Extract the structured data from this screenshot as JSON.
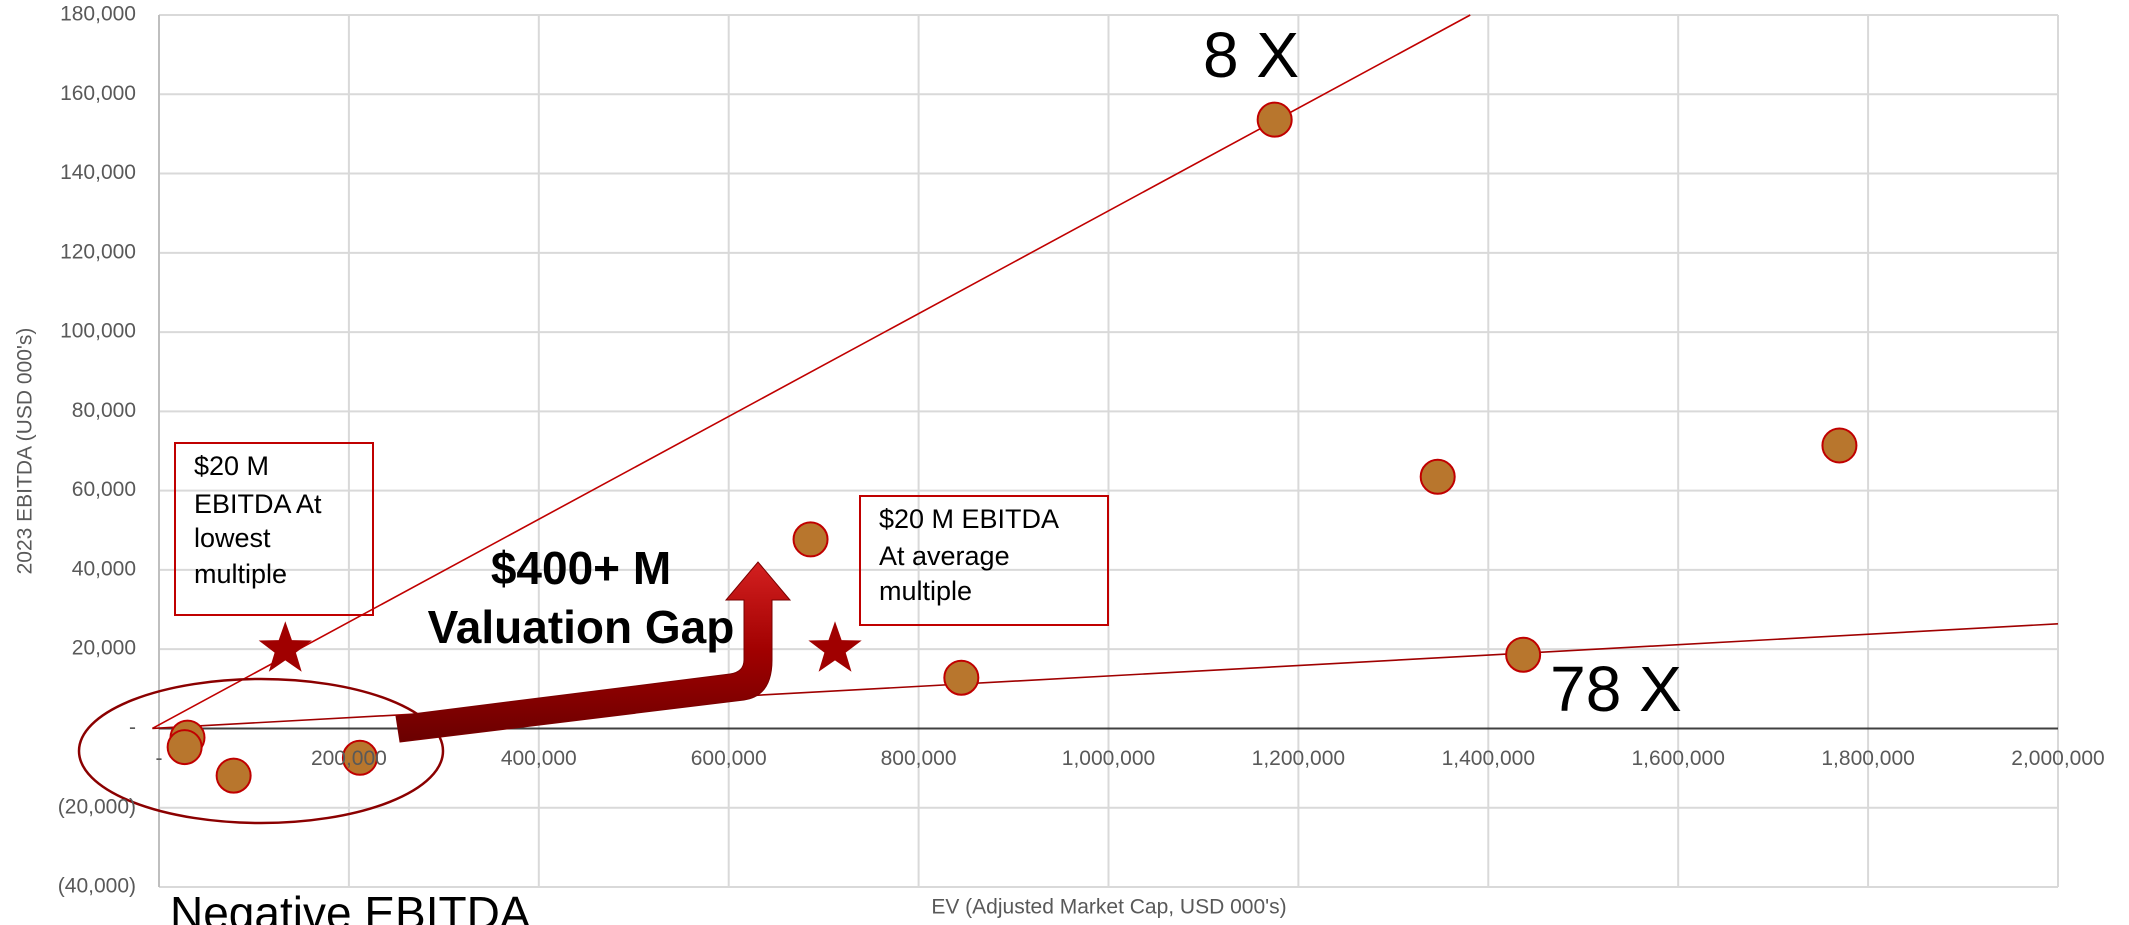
{
  "chart_data": {
    "type": "scatter",
    "x_label": "EV (Adjusted Market Cap, USD 000's)",
    "y_label": "2023 EBITDA (USD 000's)",
    "xlim": [
      0,
      2000000
    ],
    "ylim": [
      -40000,
      180000
    ],
    "xticks": [
      {
        "value": 0,
        "label": "-"
      },
      {
        "value": 200000,
        "label": "200,000"
      },
      {
        "value": 400000,
        "label": "400,000"
      },
      {
        "value": 600000,
        "label": "600,000"
      },
      {
        "value": 800000,
        "label": "800,000"
      },
      {
        "value": 1000000,
        "label": "1,000,000"
      },
      {
        "value": 1200000,
        "label": "1,200,000"
      },
      {
        "value": 1400000,
        "label": "1,400,000"
      },
      {
        "value": 1600000,
        "label": "1,600,000"
      },
      {
        "value": 1800000,
        "label": "1,800,000"
      },
      {
        "value": 2000000,
        "label": "2,000,000"
      }
    ],
    "yticks": [
      {
        "value": -40000,
        "label": "(40,000)"
      },
      {
        "value": -20000,
        "label": "(20,000)"
      },
      {
        "value": 0,
        "label": "-"
      },
      {
        "value": 20000,
        "label": "20,000"
      },
      {
        "value": 40000,
        "label": "40,000"
      },
      {
        "value": 60000,
        "label": "60,000"
      },
      {
        "value": 80000,
        "label": "80,000"
      },
      {
        "value": 100000,
        "label": "100,000"
      },
      {
        "value": 120000,
        "label": "120,000"
      },
      {
        "value": 140000,
        "label": "140,000"
      },
      {
        "value": 160000,
        "label": "160,000"
      },
      {
        "value": 180000,
        "label": "180,000"
      }
    ],
    "grid": true,
    "series": [
      {
        "marker": "circle",
        "color": "#b8762d",
        "edge_color": "#c00000",
        "x": [
          1175000,
          1346700,
          1769800,
          1436700,
          845000,
          686200,
          30000,
          27000,
          78600,
          211600
        ],
        "values": [
          153600,
          63500,
          71400,
          18600,
          12800,
          47700,
          -2300,
          -4700,
          -11900,
          -7400
        ]
      },
      {
        "marker": "star",
        "color": "#a00000",
        "x": [
          133000,
          712000
        ],
        "values": [
          20000,
          20000
        ]
      }
    ],
    "trend_lines": [
      {
        "label": "8 X",
        "color": "#c00000",
        "x": [
          -7000,
          1381000
        ],
        "y": [
          0,
          180000
        ]
      },
      {
        "label": "78 X",
        "color": "#a00000",
        "x": [
          -7000,
          2000000
        ],
        "y": [
          0,
          26400
        ]
      }
    ],
    "annotations": {
      "lowest_box": [
        "$20 M",
        "EBITDA At",
        "lowest",
        "multiple"
      ],
      "average_box": [
        "$20 M EBITDA",
        "At average",
        "multiple"
      ],
      "gap": [
        "$400+ M",
        "Valuation Gap"
      ],
      "negative": "Negative EBITDA"
    }
  }
}
